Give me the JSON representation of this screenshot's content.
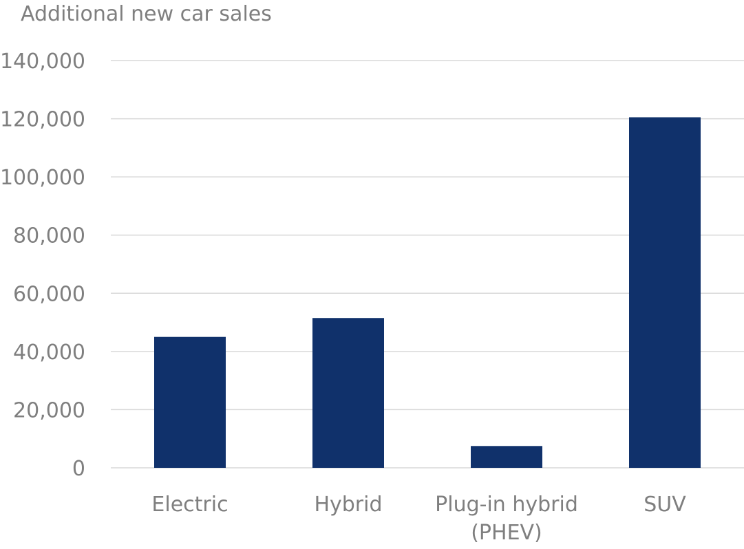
{
  "chart_data": {
    "type": "bar",
    "title": "",
    "xlabel": "",
    "ylabel": "Additional new car sales",
    "categories": [
      [
        "Electric"
      ],
      [
        "Hybrid"
      ],
      [
        "Plug-in hybrid",
        "(PHEV)"
      ],
      [
        "SUV"
      ]
    ],
    "values": [
      45000,
      51500,
      7500,
      120500
    ],
    "ylim": [
      0,
      140000
    ],
    "yticks": [
      "0",
      "20,000",
      "40,000",
      "60,000",
      "80,000",
      "100,000",
      "120,000",
      "140,000"
    ],
    "grid": true,
    "legend": "none",
    "bar_color": "#10316b"
  }
}
